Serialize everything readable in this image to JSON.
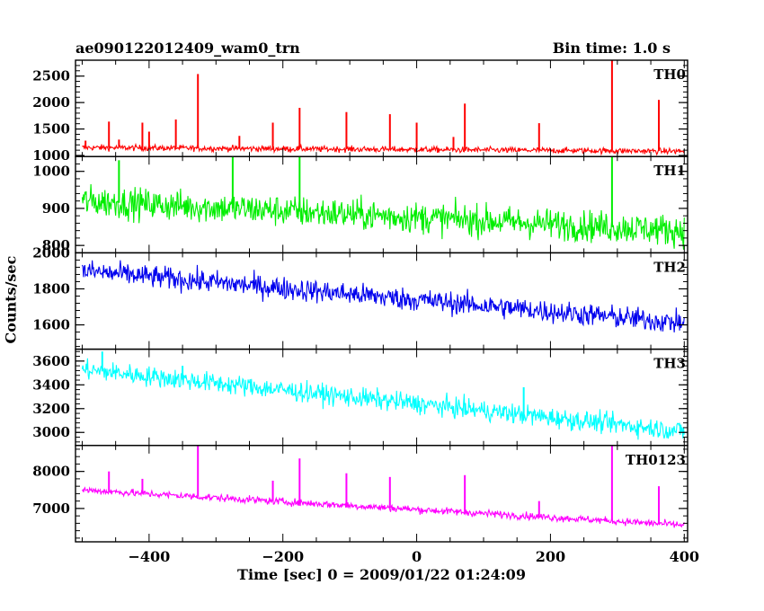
{
  "header": {
    "title": "ae090122012409_wam0_trn",
    "bin_time": "Bin time: 1.0 s"
  },
  "chart_data": {
    "type": "line",
    "title": "ae090122012409_wam0_trn",
    "subtitle": "Bin time: 1.0 s",
    "xlabel": "Time [sec] 0 = 2009/01/22 01:24:09",
    "ylabel": "Counts/sec",
    "xlim": [
      -510,
      405
    ],
    "x_ticks": [
      -400,
      -200,
      0,
      200,
      400
    ],
    "x_tick_labels": [
      "−400",
      "−200",
      "0",
      "200",
      "400"
    ],
    "grid": false,
    "panels": [
      {
        "name": "TH0",
        "color": "#ff0000",
        "ylim": [
          980,
          2800
        ],
        "y_ticks": [
          1000,
          1500,
          2000,
          2500
        ],
        "y_tick_labels": [
          "1000",
          "1500",
          "2000",
          "2500"
        ],
        "baseline": [
          [
            -500,
            1150
          ],
          [
            400,
            1080
          ]
        ],
        "noise": 40,
        "spikes": [
          [
            -495,
            1280
          ],
          [
            -460,
            1640
          ],
          [
            -445,
            1300
          ],
          [
            -410,
            1620
          ],
          [
            -400,
            1450
          ],
          [
            -360,
            1680
          ],
          [
            -327,
            2540
          ],
          [
            -265,
            1370
          ],
          [
            -215,
            1620
          ],
          [
            -175,
            1900
          ],
          [
            -105,
            1820
          ],
          [
            -40,
            1780
          ],
          [
            0,
            1620
          ],
          [
            55,
            1350
          ],
          [
            72,
            1980
          ],
          [
            183,
            1610
          ],
          [
            292,
            2800
          ],
          [
            362,
            2050
          ]
        ],
        "series": [
          {
            "name": "TH0",
            "x_range": [
              -500,
              400
            ],
            "values_summary": "mean ~1120 counts/s with short spikes"
          }
        ]
      },
      {
        "name": "TH1",
        "color": "#00ee00",
        "ylim": [
          780,
          1040
        ],
        "y_ticks": [
          800,
          900,
          1000
        ],
        "y_tick_labels": [
          "800",
          "900",
          "1000"
        ],
        "baseline": [
          [
            -500,
            920
          ],
          [
            400,
            840
          ]
        ],
        "noise": 30,
        "spikes": [
          [
            -445,
            1030
          ],
          [
            -275,
            1040
          ],
          [
            -175,
            1040
          ],
          [
            292,
            1040
          ]
        ],
        "series": [
          {
            "name": "TH1",
            "x_range": [
              -500,
              400
            ],
            "values_summary": "declines from ~920 to ~840 counts/s"
          }
        ]
      },
      {
        "name": "TH2",
        "color": "#0000ee",
        "ylim": [
          1465,
          2000
        ],
        "y_ticks": [
          1600,
          1800,
          2000
        ],
        "y_tick_labels": [
          "1600",
          "1800",
          "2000"
        ],
        "baseline": [
          [
            -500,
            1900
          ],
          [
            400,
            1610
          ]
        ],
        "noise": 45,
        "spikes": [],
        "series": [
          {
            "name": "TH2",
            "x_range": [
              -500,
              400
            ],
            "values_summary": "declines from ~1900 to ~1610 counts/s"
          }
        ]
      },
      {
        "name": "TH3",
        "color": "#00ffff",
        "ylim": [
          2890,
          3700
        ],
        "y_ticks": [
          3000,
          3200,
          3400,
          3600
        ],
        "y_tick_labels": [
          "3000",
          "3200",
          "3400",
          "3600"
        ],
        "baseline": [
          [
            -500,
            3530
          ],
          [
            400,
            3010
          ]
        ],
        "noise": 60,
        "spikes": [
          [
            -470,
            3680
          ],
          [
            -350,
            3560
          ],
          [
            160,
            3380
          ]
        ],
        "series": [
          {
            "name": "TH3",
            "x_range": [
              -500,
              400
            ],
            "values_summary": "declines from ~3530 to ~3010 counts/s"
          }
        ]
      },
      {
        "name": "TH0123",
        "color": "#ff00ff",
        "ylim": [
          6100,
          8700
        ],
        "y_ticks": [
          7000,
          8000
        ],
        "y_tick_labels": [
          "7000",
          "8000"
        ],
        "baseline": [
          [
            -500,
            7500
          ],
          [
            400,
            6550
          ]
        ],
        "noise": 70,
        "spikes": [
          [
            -460,
            8000
          ],
          [
            -410,
            7800
          ],
          [
            -327,
            8700
          ],
          [
            -215,
            7750
          ],
          [
            -175,
            8350
          ],
          [
            -105,
            7950
          ],
          [
            -40,
            7850
          ],
          [
            72,
            7900
          ],
          [
            183,
            7200
          ],
          [
            292,
            8700
          ],
          [
            362,
            7600
          ]
        ],
        "series": [
          {
            "name": "TH0123",
            "x_range": [
              -500,
              400
            ],
            "values_summary": "declines from ~7500 to ~6550 counts/s with spikes"
          }
        ]
      }
    ]
  }
}
